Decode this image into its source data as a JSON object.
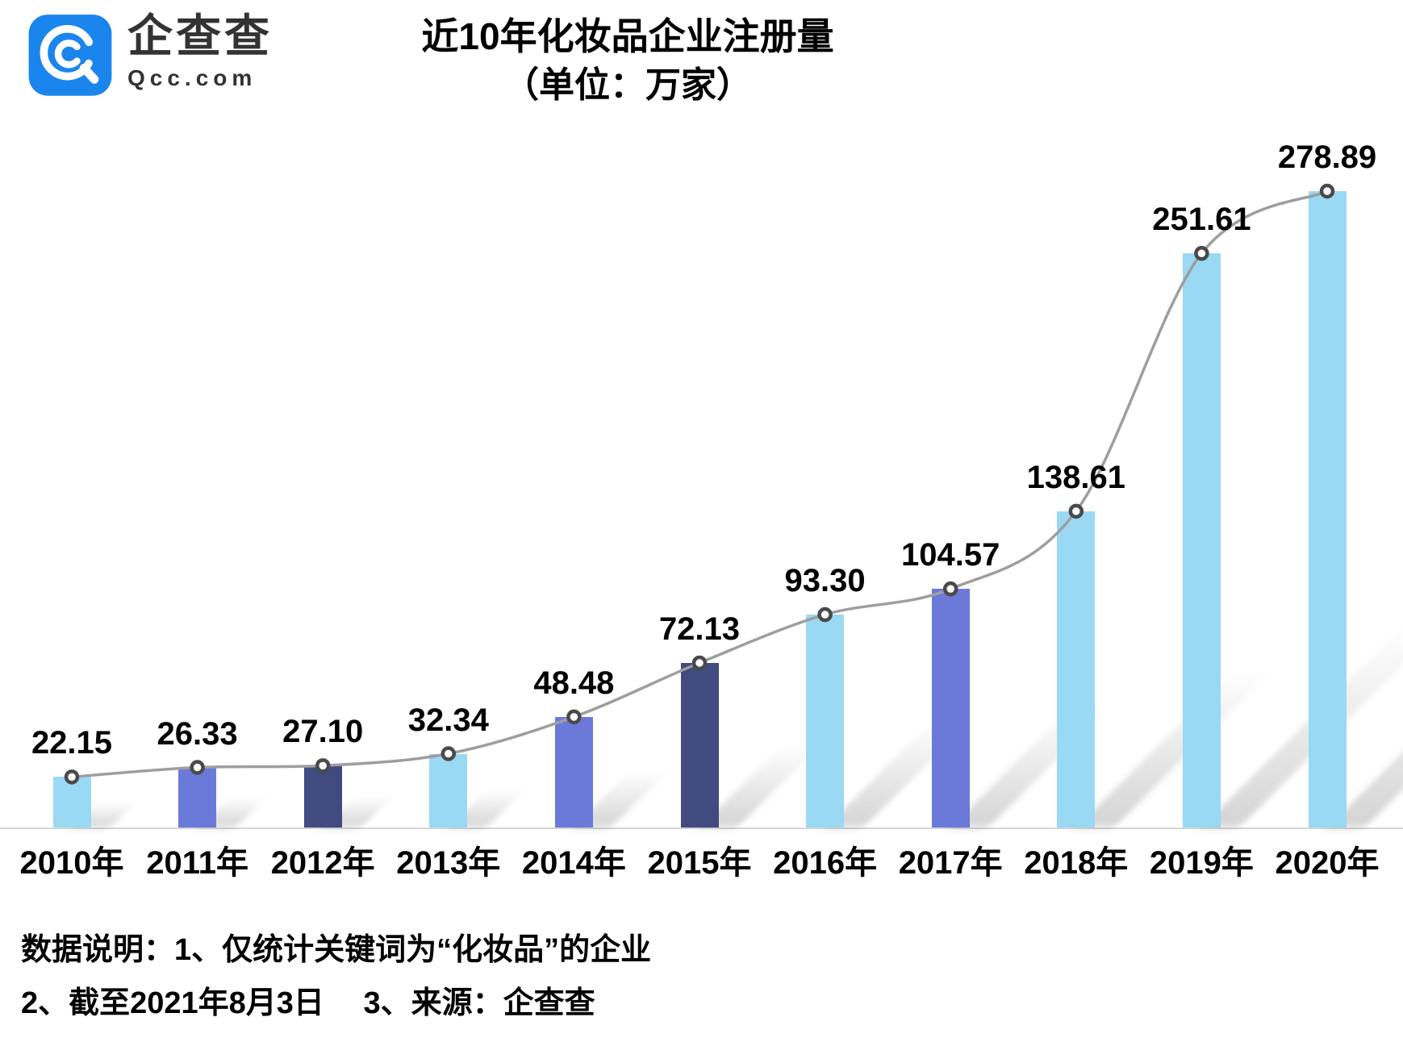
{
  "logo": {
    "brand_cn": "企查查",
    "brand_en": "Qcc.com",
    "icon_color": "#1b85ee"
  },
  "chart_data": {
    "type": "bar",
    "title": "近10年化妆品企业注册量",
    "subtitle": "（单位：万家）",
    "categories": [
      "2010年",
      "2011年",
      "2012年",
      "2013年",
      "2014年",
      "2015年",
      "2016年",
      "2017年",
      "2018年",
      "2019年",
      "2020年"
    ],
    "values": [
      22.15,
      26.33,
      27.1,
      32.34,
      48.48,
      72.13,
      93.3,
      104.57,
      138.61,
      251.61,
      278.89
    ],
    "value_labels": [
      "22.15",
      "26.33",
      "27.10",
      "32.34",
      "48.48",
      "72.13",
      "93.30",
      "104.57",
      "138.61",
      "251.61",
      "278.89"
    ],
    "overlay_line": "smooth trend line through bar tops with circular markers",
    "bar_palette": {
      "light": "#9ad9f3",
      "medium": "#6b79d9",
      "dark": "#414b80"
    },
    "bar_color_sequence": [
      "light",
      "medium",
      "dark",
      "light",
      "medium",
      "dark",
      "light",
      "medium",
      "light",
      "light",
      "light"
    ],
    "line_color": "#9e9e9e",
    "marker_fill": "#ffffff",
    "marker_ring": "#4a4a4a",
    "ylim": [
      0,
      290
    ],
    "grid": false,
    "legend_position": "none"
  },
  "footer": {
    "line1": "数据说明：1、仅统计关键词为“化妆品”的企业",
    "line2": "2、截至2021年8月3日　 3、来源：企查查"
  }
}
